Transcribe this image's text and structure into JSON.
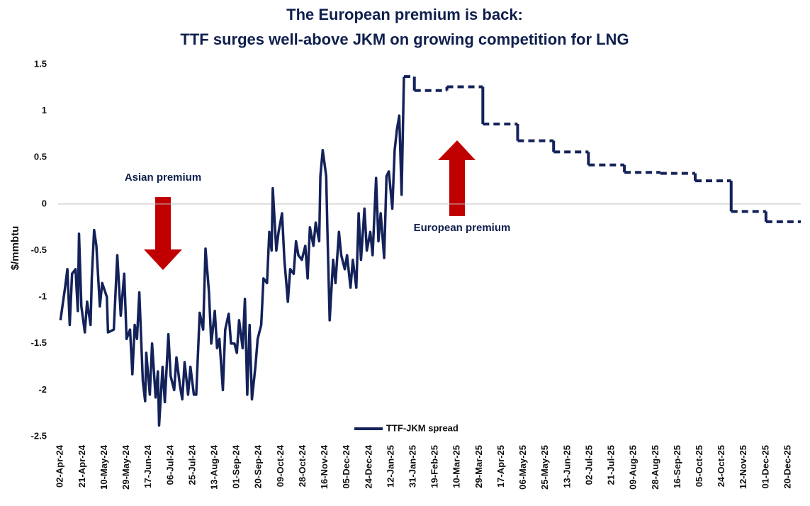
{
  "chart_data": {
    "type": "line",
    "title": [
      "The European premium is back:",
      "TTF surges well-above JKM on growing competition for LNG"
    ],
    "y_label": "$/mmbtu",
    "annotations": [
      "Asian premium",
      "European premium"
    ],
    "xlim": [
      "31-Mar-24",
      "31-Dec-25"
    ],
    "xticks": [
      "02-Apr-24",
      "21-Apr-24",
      "10-May-24",
      "29-May-24",
      "17-Jun-24",
      "06-Jul-24",
      "25-Jul-24",
      "13-Aug-24",
      "01-Sep-24",
      "20-Sep-24",
      "09-Oct-24",
      "28-Oct-24",
      "16-Nov-24",
      "05-Dec-24",
      "24-Dec-24",
      "12-Jan-25",
      "31-Jan-25",
      "19-Feb-25",
      "10-Mar-25",
      "29-Mar-25",
      "17-Apr-25",
      "06-May-25",
      "25-May-25",
      "13-Jun-25",
      "02-Jul-25",
      "21-Jul-25",
      "09-Aug-25",
      "28-Aug-25",
      "16-Sep-25",
      "05-Oct-25",
      "24-Oct-25",
      "12-Nov-25",
      "01-Dec-25",
      "20-Dec-25"
    ],
    "ylim": [
      -2.5,
      1.5
    ],
    "yticks": [
      1.5,
      1,
      0.5,
      0,
      -0.5,
      -1,
      -1.5,
      -2,
      -2.5
    ],
    "zero_line": true,
    "legend": "bottom",
    "series": [
      {
        "name": "TTF-JKM spread",
        "color": "#14225a",
        "style": "solid",
        "x": [
          "02-Apr-24",
          "06-Apr-24",
          "08-Apr-24",
          "10-Apr-24",
          "12-Apr-24",
          "15-Apr-24",
          "17-Apr-24",
          "18-Apr-24",
          "20-Apr-24",
          "23-Apr-24",
          "25-Apr-24",
          "28-Apr-24",
          "29-Apr-24",
          "01-May-24",
          "03-May-24",
          "06-May-24",
          "08-May-24",
          "12-May-24",
          "13-May-24",
          "18-May-24",
          "21-May-24",
          "24-May-24",
          "27-May-24",
          "29-May-24",
          "01-Jun-24",
          "03-Jun-24",
          "05-Jun-24",
          "07-Jun-24",
          "09-Jun-24",
          "12-Jun-24",
          "14-Jun-24",
          "15-Jun-24",
          "18-Jun-24",
          "20-Jun-24",
          "23-Jun-24",
          "25-Jun-24",
          "26-Jun-24",
          "29-Jun-24",
          "01-Jul-24",
          "04-Jul-24",
          "06-Jul-24",
          "09-Jul-24",
          "11-Jul-24",
          "14-Jul-24",
          "16-Jul-24",
          "18-Jul-24",
          "21-Jul-24",
          "23-Jul-24",
          "26-Jul-24",
          "28-Jul-24",
          "31-Jul-24",
          "03-Aug-24",
          "05-Aug-24",
          "08-Aug-24",
          "10-Aug-24",
          "13-Aug-24",
          "15-Aug-24",
          "17-Aug-24",
          "20-Aug-24",
          "22-Aug-24",
          "25-Aug-24",
          "27-Aug-24",
          "30-Aug-24",
          "01-Sep-24",
          "03-Sep-24",
          "06-Sep-24",
          "08-Sep-24",
          "10-Sep-24",
          "12-Sep-24",
          "14-Sep-24",
          "17-Sep-24",
          "19-Sep-24",
          "22-Sep-24",
          "24-Sep-24",
          "27-Sep-24",
          "29-Sep-24",
          "01-Oct-24",
          "02-Oct-24",
          "05-Oct-24",
          "07-Oct-24",
          "10-Oct-24",
          "12-Oct-24",
          "15-Oct-24",
          "17-Oct-24",
          "20-Oct-24",
          "22-Oct-24",
          "24-Oct-24",
          "27-Oct-24",
          "30-Oct-24",
          "01-Nov-24",
          "03-Nov-24",
          "06-Nov-24",
          "08-Nov-24",
          "11-Nov-24",
          "12-Nov-24",
          "14-Nov-24",
          "17-Nov-24",
          "18-Nov-24",
          "20-Nov-24",
          "23-Nov-24",
          "25-Nov-24",
          "28-Nov-24",
          "30-Nov-24",
          "03-Dec-24",
          "05-Dec-24",
          "08-Dec-24",
          "10-Dec-24",
          "13-Dec-24",
          "15-Dec-24",
          "17-Dec-24",
          "20-Dec-24",
          "22-Dec-24",
          "25-Dec-24",
          "27-Dec-24",
          "30-Dec-24",
          "01-Jan-25",
          "03-Jan-25",
          "06-Jan-25",
          "08-Jan-25",
          "10-Jan-25",
          "13-Jan-25",
          "15-Jan-25",
          "17-Jan-25",
          "19-Jan-25",
          "21-Jan-25",
          "23-Jan-25"
        ],
        "values": [
          -1.25,
          -0.9,
          -0.7,
          -1.3,
          -0.75,
          -0.7,
          -1.15,
          -0.32,
          -1.1,
          -1.38,
          -1.05,
          -1.3,
          -0.8,
          -0.28,
          -0.45,
          -1.1,
          -0.85,
          -1.0,
          -1.38,
          -1.35,
          -0.55,
          -1.2,
          -0.75,
          -1.45,
          -1.35,
          -1.83,
          -1.3,
          -1.45,
          -0.95,
          -1.9,
          -2.12,
          -1.6,
          -2.05,
          -1.5,
          -2.08,
          -1.8,
          -2.38,
          -1.75,
          -2.13,
          -1.4,
          -1.85,
          -2.0,
          -1.65,
          -1.95,
          -2.1,
          -1.7,
          -2.05,
          -1.75,
          -2.05,
          -2.05,
          -1.17,
          -1.35,
          -0.48,
          -0.95,
          -1.5,
          -1.15,
          -1.55,
          -1.45,
          -2.0,
          -1.35,
          -1.18,
          -1.5,
          -1.5,
          -1.6,
          -1.25,
          -1.55,
          -1.02,
          -2.05,
          -1.3,
          -2.1,
          -1.75,
          -1.45,
          -1.3,
          -0.8,
          -0.85,
          -0.3,
          -0.5,
          0.17,
          -0.5,
          -0.3,
          -0.1,
          -0.6,
          -1.05,
          -0.7,
          -0.75,
          -0.4,
          -0.55,
          -0.6,
          -0.45,
          -0.8,
          -0.25,
          -0.45,
          -0.2,
          -0.4,
          0.3,
          0.58,
          0.3,
          -0.25,
          -1.25,
          -0.6,
          -0.85,
          -0.3,
          -0.55,
          -0.7,
          -0.55,
          -0.9,
          -0.6,
          -0.9,
          -0.1,
          -0.6,
          -0.05,
          -0.5,
          -0.3,
          -0.55,
          0.28,
          -0.4,
          -0.1,
          -0.58,
          0.3,
          0.35,
          -0.05,
          0.58,
          0.8,
          0.95,
          0.1,
          1.37
        ]
      },
      {
        "color": "#14225a",
        "style": "dashed",
        "step": true,
        "x": [
          "23-Jan-25",
          "01-Feb-25",
          "01-Mar-25",
          "01-Apr-25",
          "01-May-25",
          "01-Jun-25",
          "01-Jul-25",
          "01-Aug-25",
          "01-Sep-25",
          "01-Oct-25",
          "01-Nov-25",
          "01-Dec-25"
        ],
        "values": [
          1.37,
          1.22,
          1.26,
          0.86,
          0.68,
          0.56,
          0.42,
          0.34,
          0.33,
          0.25,
          -0.08,
          -0.19
        ]
      }
    ]
  }
}
